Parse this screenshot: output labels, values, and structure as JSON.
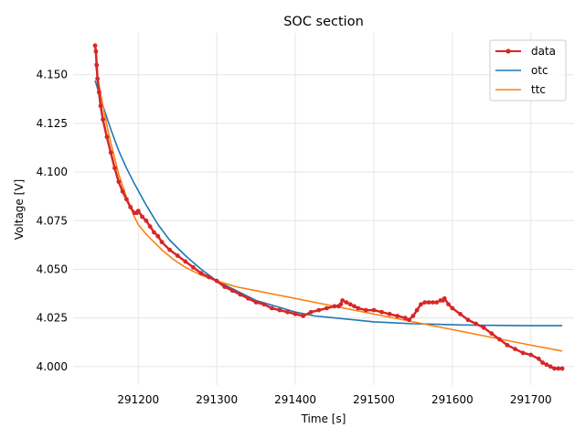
{
  "chart_data": {
    "type": "line",
    "title": "SOC section",
    "xlabel": "Time [s]",
    "ylabel": "Voltage [V]",
    "xlim": [
      291117,
      291755
    ],
    "ylim": [
      3.9905,
      4.1715
    ],
    "xticks": [
      291200,
      291300,
      291400,
      291500,
      291600,
      291700
    ],
    "yticks": [
      4.0,
      4.025,
      4.05,
      4.075,
      4.1,
      4.125,
      4.15
    ],
    "grid": true,
    "legend_position": "top-right",
    "series": [
      {
        "name": "data",
        "color": "#d62728",
        "marker": "circle",
        "x": [
          291145,
          291146,
          291147,
          291148,
          291150,
          291152,
          291155,
          291160,
          291165,
          291170,
          291175,
          291180,
          291185,
          291190,
          291195,
          291198,
          291200,
          291205,
          291210,
          291215,
          291220,
          291225,
          291230,
          291240,
          291250,
          291260,
          291270,
          291280,
          291290,
          291300,
          291310,
          291320,
          291330,
          291340,
          291350,
          291360,
          291370,
          291380,
          291390,
          291400,
          291410,
          291420,
          291430,
          291440,
          291450,
          291455,
          291458,
          291460,
          291465,
          291470,
          291475,
          291480,
          291490,
          291500,
          291510,
          291520,
          291530,
          291540,
          291545,
          291550,
          291555,
          291560,
          291565,
          291570,
          291575,
          291580,
          291585,
          291588,
          291590,
          291595,
          291600,
          291610,
          291620,
          291630,
          291640,
          291650,
          291660,
          291670,
          291680,
          291690,
          291700,
          291710,
          291715,
          291720,
          291725,
          291730,
          291735,
          291740
        ],
        "y": [
          4.165,
          4.162,
          4.155,
          4.148,
          4.141,
          4.134,
          4.127,
          4.118,
          4.11,
          4.102,
          4.095,
          4.09,
          4.086,
          4.082,
          4.079,
          4.079,
          4.08,
          4.077,
          4.075,
          4.072,
          4.069,
          4.067,
          4.064,
          4.06,
          4.057,
          4.054,
          4.051,
          4.048,
          4.046,
          4.044,
          4.041,
          4.039,
          4.037,
          4.035,
          4.033,
          4.032,
          4.03,
          4.029,
          4.028,
          4.027,
          4.026,
          4.028,
          4.029,
          4.03,
          4.031,
          4.031,
          4.032,
          4.034,
          4.033,
          4.032,
          4.031,
          4.03,
          4.029,
          4.029,
          4.028,
          4.027,
          4.026,
          4.025,
          4.024,
          4.026,
          4.029,
          4.032,
          4.033,
          4.033,
          4.033,
          4.033,
          4.034,
          4.034,
          4.035,
          4.032,
          4.03,
          4.027,
          4.024,
          4.022,
          4.02,
          4.017,
          4.014,
          4.011,
          4.009,
          4.007,
          4.006,
          4.004,
          4.002,
          4.001,
          4.0,
          3.999,
          3.999,
          3.999
        ]
      },
      {
        "name": "otc",
        "color": "#1f77b4",
        "x": [
          291145,
          291155,
          291165,
          291175,
          291185,
          291195,
          291210,
          291225,
          291240,
          291260,
          291280,
          291300,
          291325,
          291350,
          291375,
          291400,
          291425,
          291450,
          291475,
          291500,
          291525,
          291550,
          291575,
          291600,
          291625,
          291650,
          291675,
          291700,
          291740
        ],
        "y": [
          4.147,
          4.134,
          4.122,
          4.111,
          4.102,
          4.094,
          4.083,
          4.073,
          4.065,
          4.057,
          4.05,
          4.044,
          4.039,
          4.034,
          4.031,
          4.028,
          4.026,
          4.025,
          4.024,
          4.023,
          4.0225,
          4.022,
          4.0218,
          4.0215,
          4.0213,
          4.0212,
          4.0211,
          4.021,
          4.021
        ]
      },
      {
        "name": "ttc",
        "color": "#ff7f0e",
        "x": [
          291145,
          291150,
          291155,
          291160,
          291165,
          291170,
          291175,
          291180,
          291185,
          291190,
          291195,
          291200,
          291210,
          291220,
          291230,
          291245,
          291260,
          291280,
          291300,
          291325,
          291350,
          291375,
          291400,
          291425,
          291450,
          291475,
          291500,
          291525,
          291550,
          291575,
          291600,
          291625,
          291650,
          291675,
          291700,
          291740
        ],
        "y": [
          4.156,
          4.145,
          4.134,
          4.124,
          4.115,
          4.107,
          4.099,
          4.093,
          4.087,
          4.082,
          4.077,
          4.073,
          4.068,
          4.064,
          4.06,
          4.055,
          4.051,
          4.047,
          4.044,
          4.041,
          4.039,
          4.037,
          4.035,
          4.033,
          4.031,
          4.029,
          4.027,
          4.025,
          4.023,
          4.021,
          4.019,
          4.017,
          4.015,
          4.013,
          4.011,
          4.008
        ]
      }
    ]
  }
}
